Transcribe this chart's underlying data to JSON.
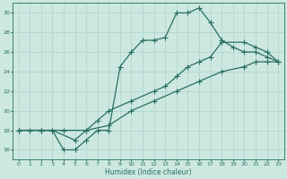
{
  "xlabel": "Humidex (Indice chaleur)",
  "bg_color": "#cce8e0",
  "grid_color": "#b0d8d0",
  "line_color": "#2a7060",
  "xlim": [
    -0.5,
    23.5
  ],
  "ylim": [
    15,
    31
  ],
  "xticks": [
    0,
    1,
    2,
    3,
    4,
    5,
    6,
    7,
    8,
    9,
    10,
    11,
    12,
    13,
    14,
    15,
    16,
    17,
    18,
    19,
    20,
    21,
    22,
    23
  ],
  "yticks": [
    16,
    18,
    20,
    22,
    24,
    26,
    28,
    30
  ],
  "curve1_x": [
    0,
    1,
    2,
    3,
    4,
    5,
    6,
    7,
    8,
    9,
    10,
    11,
    12,
    13,
    14,
    15,
    16,
    17,
    18,
    19,
    20,
    21,
    22,
    23
  ],
  "curve1_y": [
    18,
    18,
    18,
    18,
    16,
    16,
    17,
    18,
    18,
    24.5,
    26,
    27.2,
    27.2,
    27.5,
    30,
    30,
    30.5,
    29.0,
    27.2,
    26.5,
    26,
    26,
    25.5,
    25
  ],
  "curve2_x": [
    0,
    2,
    3,
    5,
    6,
    7,
    8,
    10,
    12,
    13,
    14,
    15,
    16,
    17,
    18,
    20,
    21,
    22,
    23
  ],
  "curve2_y": [
    18,
    18,
    18,
    17,
    18,
    19,
    20,
    21,
    22,
    22.5,
    23.5,
    24.5,
    25,
    25.5,
    27,
    27,
    26.5,
    26,
    25
  ],
  "curve3_x": [
    0,
    2,
    4,
    6,
    8,
    10,
    12,
    14,
    16,
    18,
    20,
    21,
    22,
    23
  ],
  "curve3_y": [
    18,
    18,
    18,
    18,
    18.5,
    20,
    21,
    22,
    23,
    24,
    24.5,
    25,
    25,
    25
  ]
}
